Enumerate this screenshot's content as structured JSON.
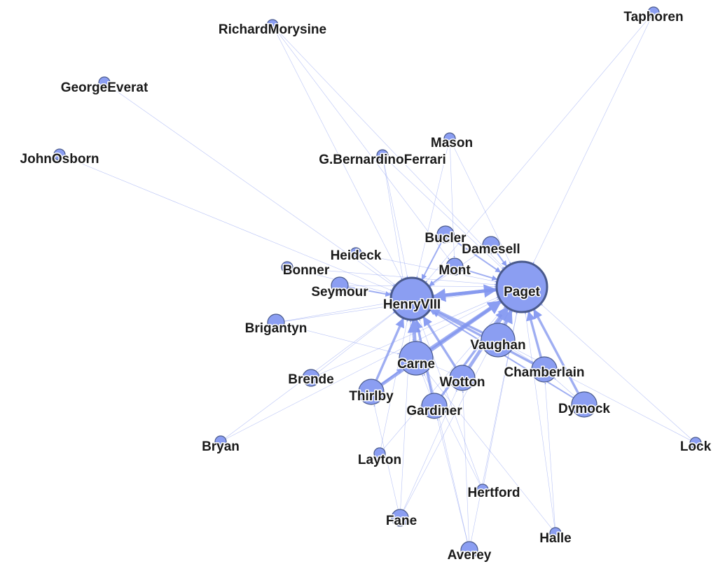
{
  "graph": {
    "type": "network",
    "nodes": [
      {
        "id": "Taphoren",
        "label": "Taphoren",
        "weight": 1
      },
      {
        "id": "RichardMorysine",
        "label": "RichardMorysine",
        "weight": 1
      },
      {
        "id": "GeorgeEverat",
        "label": "GeorgeEverat",
        "weight": 1
      },
      {
        "id": "JohnOsborn",
        "label": "JohnOsborn",
        "weight": 1
      },
      {
        "id": "Mason",
        "label": "Mason",
        "weight": 1
      },
      {
        "id": "GBernardinoFerrari",
        "label": "G.BernardinoFerrari",
        "weight": 1
      },
      {
        "id": "Bucler",
        "label": "Bucler",
        "weight": 2
      },
      {
        "id": "Damesell",
        "label": "Damesell",
        "weight": 2
      },
      {
        "id": "Heideck",
        "label": "Heideck",
        "weight": 1
      },
      {
        "id": "Mont",
        "label": "Mont",
        "weight": 2
      },
      {
        "id": "Bonner",
        "label": "Bonner",
        "weight": 1
      },
      {
        "id": "Seymour",
        "label": "Seymour",
        "weight": 2
      },
      {
        "id": "HenryVIII",
        "label": "HenryVIII",
        "weight": 5
      },
      {
        "id": "Paget",
        "label": "Paget",
        "weight": 6
      },
      {
        "id": "Brigantyn",
        "label": "Brigantyn",
        "weight": 2
      },
      {
        "id": "Vaughan",
        "label": "Vaughan",
        "weight": 4
      },
      {
        "id": "Carne",
        "label": "Carne",
        "weight": 4
      },
      {
        "id": "Chamberlain",
        "label": "Chamberlain",
        "weight": 3
      },
      {
        "id": "Brende",
        "label": "Brende",
        "weight": 2
      },
      {
        "id": "Wotton",
        "label": "Wotton",
        "weight": 3
      },
      {
        "id": "Thirlby",
        "label": "Thirlby",
        "weight": 3
      },
      {
        "id": "Gardiner",
        "label": "Gardiner",
        "weight": 3
      },
      {
        "id": "Dymock",
        "label": "Dymock",
        "weight": 3
      },
      {
        "id": "Bryan",
        "label": "Bryan",
        "weight": 1
      },
      {
        "id": "Layton",
        "label": "Layton",
        "weight": 1
      },
      {
        "id": "Lock",
        "label": "Lock",
        "weight": 1
      },
      {
        "id": "Hertford",
        "label": "Hertford",
        "weight": 1
      },
      {
        "id": "Fane",
        "label": "Fane",
        "weight": 2
      },
      {
        "id": "Halle",
        "label": "Halle",
        "weight": 1
      },
      {
        "id": "Averey",
        "label": "Averey",
        "weight": 2
      }
    ],
    "edges": [
      {
        "source": "Taphoren",
        "target": "Paget",
        "weight": 1
      },
      {
        "source": "Taphoren",
        "target": "HenryVIII",
        "weight": 1
      },
      {
        "source": "RichardMorysine",
        "target": "HenryVIII",
        "weight": 1
      },
      {
        "source": "RichardMorysine",
        "target": "Paget",
        "weight": 1
      },
      {
        "source": "RichardMorysine",
        "target": "Mont",
        "weight": 1
      },
      {
        "source": "GeorgeEverat",
        "target": "HenryVIII",
        "weight": 1
      },
      {
        "source": "JohnOsborn",
        "target": "HenryVIII",
        "weight": 1
      },
      {
        "source": "Mason",
        "target": "Paget",
        "weight": 1
      },
      {
        "source": "Mason",
        "target": "HenryVIII",
        "weight": 1
      },
      {
        "source": "Mason",
        "target": "Mont",
        "weight": 1
      },
      {
        "source": "GBernardinoFerrari",
        "target": "HenryVIII",
        "weight": 1
      },
      {
        "source": "GBernardinoFerrari",
        "target": "Paget",
        "weight": 1
      },
      {
        "source": "GBernardinoFerrari",
        "target": "Carne",
        "weight": 1
      },
      {
        "source": "Bucler",
        "target": "Paget",
        "weight": 2
      },
      {
        "source": "Bucler",
        "target": "HenryVIII",
        "weight": 2
      },
      {
        "source": "Damesell",
        "target": "Paget",
        "weight": 2
      },
      {
        "source": "Damesell",
        "target": "HenryVIII",
        "weight": 1
      },
      {
        "source": "Heideck",
        "target": "HenryVIII",
        "weight": 1
      },
      {
        "source": "Heideck",
        "target": "Paget",
        "weight": 1
      },
      {
        "source": "Mont",
        "target": "HenryVIII",
        "weight": 2
      },
      {
        "source": "Mont",
        "target": "Paget",
        "weight": 2
      },
      {
        "source": "Bonner",
        "target": "HenryVIII",
        "weight": 1
      },
      {
        "source": "Bonner",
        "target": "Paget",
        "weight": 1
      },
      {
        "source": "Seymour",
        "target": "HenryVIII",
        "weight": 2
      },
      {
        "source": "Seymour",
        "target": "Paget",
        "weight": 1
      },
      {
        "source": "Brigantyn",
        "target": "HenryVIII",
        "weight": 1
      },
      {
        "source": "Brigantyn",
        "target": "Paget",
        "weight": 1
      },
      {
        "source": "Brigantyn",
        "target": "Carne",
        "weight": 1
      },
      {
        "source": "Vaughan",
        "target": "Paget",
        "weight": 4
      },
      {
        "source": "Vaughan",
        "target": "HenryVIII",
        "weight": 3
      },
      {
        "source": "Carne",
        "target": "HenryVIII",
        "weight": 4
      },
      {
        "source": "Carne",
        "target": "Paget",
        "weight": 4
      },
      {
        "source": "Chamberlain",
        "target": "Paget",
        "weight": 3
      },
      {
        "source": "Chamberlain",
        "target": "HenryVIII",
        "weight": 3
      },
      {
        "source": "Brende",
        "target": "HenryVIII",
        "weight": 1
      },
      {
        "source": "Brende",
        "target": "Paget",
        "weight": 1
      },
      {
        "source": "Wotton",
        "target": "Paget",
        "weight": 4
      },
      {
        "source": "Wotton",
        "target": "HenryVIII",
        "weight": 3
      },
      {
        "source": "Thirlby",
        "target": "HenryVIII",
        "weight": 3
      },
      {
        "source": "Thirlby",
        "target": "Paget",
        "weight": 4
      },
      {
        "source": "Thirlby",
        "target": "Carne",
        "weight": 2
      },
      {
        "source": "Gardiner",
        "target": "Paget",
        "weight": 3
      },
      {
        "source": "Gardiner",
        "target": "HenryVIII",
        "weight": 3
      },
      {
        "source": "Dymock",
        "target": "Paget",
        "weight": 3
      },
      {
        "source": "Dymock",
        "target": "HenryVIII",
        "weight": 2
      },
      {
        "source": "Dymock",
        "target": "Chamberlain",
        "weight": 1
      },
      {
        "source": "Bryan",
        "target": "HenryVIII",
        "weight": 1
      },
      {
        "source": "Bryan",
        "target": "Paget",
        "weight": 1
      },
      {
        "source": "Layton",
        "target": "HenryVIII",
        "weight": 1
      },
      {
        "source": "Layton",
        "target": "Paget",
        "weight": 1
      },
      {
        "source": "Lock",
        "target": "Paget",
        "weight": 1
      },
      {
        "source": "Lock",
        "target": "Vaughan",
        "weight": 1
      },
      {
        "source": "Hertford",
        "target": "Paget",
        "weight": 1
      },
      {
        "source": "Hertford",
        "target": "HenryVIII",
        "weight": 1
      },
      {
        "source": "Hertford",
        "target": "Carne",
        "weight": 1
      },
      {
        "source": "Fane",
        "target": "HenryVIII",
        "weight": 1
      },
      {
        "source": "Fane",
        "target": "Paget",
        "weight": 1
      },
      {
        "source": "Fane",
        "target": "Thirlby",
        "weight": 1
      },
      {
        "source": "Fane",
        "target": "Wotton",
        "weight": 1
      },
      {
        "source": "Halle",
        "target": "Paget",
        "weight": 1
      },
      {
        "source": "Halle",
        "target": "Carne",
        "weight": 1
      },
      {
        "source": "Halle",
        "target": "Chamberlain",
        "weight": 1
      },
      {
        "source": "Averey",
        "target": "Paget",
        "weight": 1
      },
      {
        "source": "Averey",
        "target": "HenryVIII",
        "weight": 1
      },
      {
        "source": "Averey",
        "target": "Wotton",
        "weight": 1
      },
      {
        "source": "Averey",
        "target": "Gardiner",
        "weight": 1
      },
      {
        "source": "Gardiner",
        "target": "Carne",
        "weight": 1
      },
      {
        "source": "Wotton",
        "target": "Carne",
        "weight": 1
      },
      {
        "source": "Vaughan",
        "target": "Chamberlain",
        "weight": 1
      },
      {
        "source": "HenryVIII",
        "target": "Paget",
        "weight": 4
      },
      {
        "source": "Paget",
        "target": "HenryVIII",
        "weight": 4
      }
    ]
  }
}
